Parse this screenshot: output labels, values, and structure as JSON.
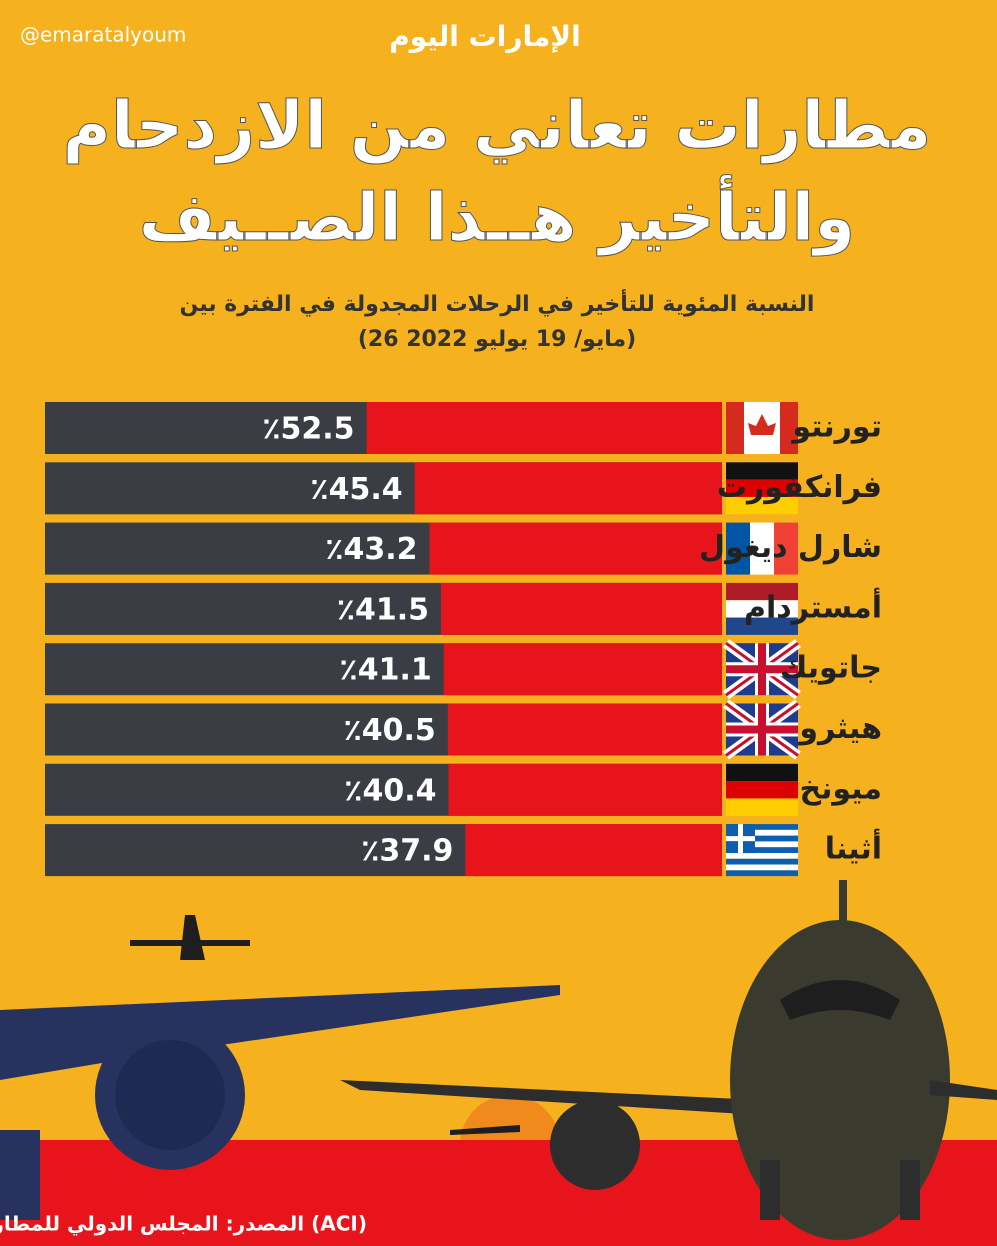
{
  "handle": "@emaratalyoum",
  "logo": "الإمارات اليوم",
  "chart_data": {
    "type": "bar",
    "orientation": "horizontal",
    "title": [
      "مطارات تعاني من الازدحام",
      "والتأخير هــذا الصــيف"
    ],
    "subtitle": [
      "النسبة المئوية للتأخير في الرحلات المجدولة في الفترة بين",
      "(26 مايو/ 19 يوليو 2022)"
    ],
    "categories": [
      "تورنتو",
      "فرانكفورت",
      "شارل ديغول",
      "أمستردام",
      "جاتويك",
      "هيثرو",
      "ميونخ",
      "أثينا"
    ],
    "values": [
      52.5,
      45.4,
      43.2,
      41.5,
      41.1,
      40.5,
      40.4,
      37.9
    ],
    "value_labels": [
      "٪52.5",
      "٪45.4",
      "٪43.2",
      "٪41.5",
      "٪41.1",
      "٪40.5",
      "٪40.4",
      "٪37.9"
    ],
    "xlim": [
      0,
      100
    ],
    "color": "#e8141b",
    "track_color": "#3a3d44",
    "source": "المصدر: المجلس الدولي للمطارات (ACI)"
  }
}
